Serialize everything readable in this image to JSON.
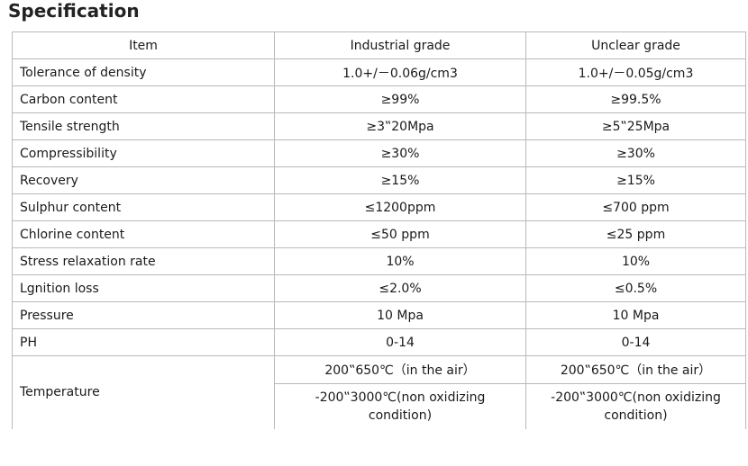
{
  "title": "Specification",
  "table": {
    "headers": [
      "Item",
      "Industrial grade",
      "Unclear grade"
    ],
    "rows": [
      [
        "Tolerance of density",
        "1.0+/－0.06g/cm3",
        "1.0+/－0.05g/cm3"
      ],
      [
        "Carbon content",
        "≥99%",
        "≥99.5%"
      ],
      [
        "Tensile strength",
        "≥3‟20Mpa",
        "≥5‟25Mpa"
      ],
      [
        "Compressibility",
        "≥30%",
        "≥30%"
      ],
      [
        "Recovery",
        "≥15%",
        "≥15%"
      ],
      [
        "Sulphur content",
        "≤1200ppm",
        "≤700 ppm"
      ],
      [
        "Chlorine content",
        "≤50 ppm",
        "≤25 ppm"
      ],
      [
        "Stress relaxation rate",
        "10%",
        "10%"
      ],
      [
        "Lgnition loss",
        "≤2.0%",
        "≤0.5%"
      ],
      [
        "Pressure",
        "10 Mpa",
        "10 Mpa"
      ],
      [
        "PH",
        "0-14",
        "0-14"
      ]
    ],
    "temperature": {
      "label": "Temperature",
      "industrial_air": "200‟650℃（in the air）",
      "unclear_air": "200‟650℃（in the air）",
      "industrial_nonox": "-200‟3000℃(non oxidizing condition)",
      "unclear_nonox": "-200‟3000℃(non oxidizing condition)"
    }
  }
}
